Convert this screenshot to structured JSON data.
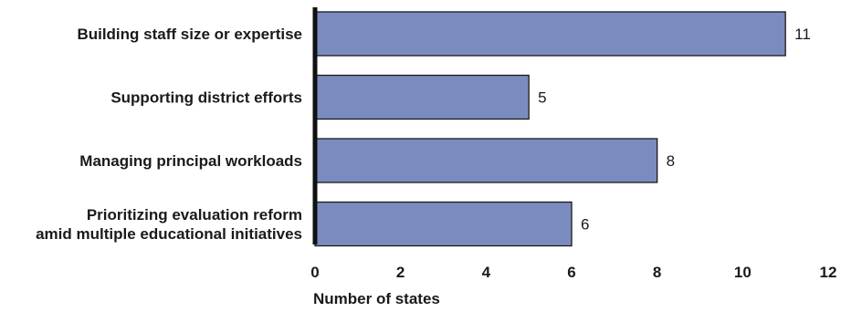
{
  "chart_data": {
    "type": "bar",
    "orientation": "horizontal",
    "categories": [
      "Building staff size or expertise",
      "Supporting district efforts",
      "Managing principal workloads",
      [
        "Prioritizing evaluation reform",
        "amid multiple educational initiatives"
      ]
    ],
    "values": [
      11,
      5,
      8,
      6
    ],
    "xlabel": "Number of states",
    "ylabel": "",
    "xlim": [
      0,
      12
    ],
    "xticks": [
      0,
      2,
      4,
      6,
      8,
      10,
      12
    ],
    "grid": false,
    "legend": "none",
    "colors": {
      "bar_fill": "#7a8cbf",
      "bar_stroke": "#1a1a1a",
      "axis": "#111111",
      "text": "#1a1a1a"
    }
  }
}
